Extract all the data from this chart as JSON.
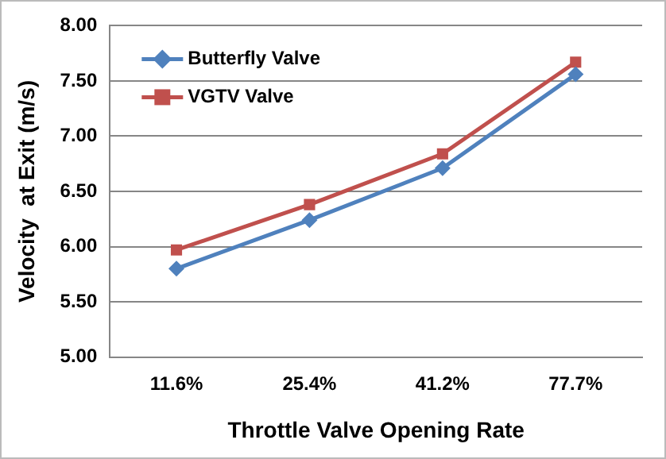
{
  "chart_data": {
    "type": "line",
    "xlabel": "Throttle Valve Opening Rate",
    "ylabel": "Velocity  at Exit (m/s)",
    "categories": [
      "11.6%",
      "25.4%",
      "41.2%",
      "77.7%"
    ],
    "series": [
      {
        "name": "Butterfly Valve",
        "color": "#4f81bd",
        "marker": "diamond",
        "values": [
          5.8,
          6.24,
          6.71,
          7.56
        ]
      },
      {
        "name": "VGTV Valve",
        "color": "#c0504d",
        "marker": "square",
        "values": [
          5.97,
          6.38,
          6.84,
          7.67
        ]
      }
    ],
    "ylim": [
      5,
      8
    ],
    "yticks": [
      {
        "value": 5,
        "label": "5.00"
      },
      {
        "value": 5.5,
        "label": "5.50"
      },
      {
        "value": 6,
        "label": "6.00"
      },
      {
        "value": 6.5,
        "label": "6.50"
      },
      {
        "value": 7,
        "label": "7.00"
      },
      {
        "value": 7.5,
        "label": "7.50"
      },
      {
        "value": 8,
        "label": "8.00"
      }
    ],
    "grid": "y",
    "legend": "top left",
    "line_style": "solid"
  }
}
